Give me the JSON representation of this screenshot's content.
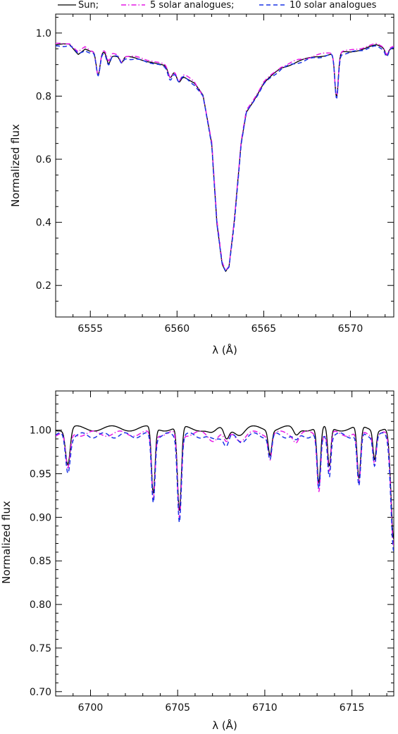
{
  "legend": {
    "items": [
      {
        "label": "Sun;",
        "color": "#000000",
        "dash": "solid"
      },
      {
        "label": "5 solar analogues;",
        "color": "#e619e6",
        "dash": "dashdot"
      },
      {
        "label": "10 solar analogues",
        "color": "#1a33e6",
        "dash": "dash"
      }
    ]
  },
  "chart_data": [
    {
      "type": "line",
      "xlabel": "λ (Å)",
      "ylabel": "Normalized flux",
      "xlim": [
        6553.0,
        6572.5
      ],
      "ylim": [
        0.1,
        1.06
      ],
      "xticks": [
        6555,
        6560,
        6565,
        6570
      ],
      "yticks": [
        0.2,
        0.4,
        0.6,
        0.8,
        1.0
      ],
      "ytick_labels": [
        "0.2",
        "0.4",
        "0.6",
        "0.8",
        "1.0"
      ],
      "continuum": [
        [
          6553.0,
          0.96
        ],
        [
          6553.8,
          0.965
        ],
        [
          6554.3,
          0.935
        ],
        [
          6554.7,
          0.95
        ],
        [
          6555.0,
          0.94
        ],
        [
          6555.8,
          0.94
        ],
        [
          6556.3,
          0.93
        ],
        [
          6557.5,
          0.92
        ],
        [
          6558.5,
          0.91
        ],
        [
          6559.5,
          0.89
        ],
        [
          6560.5,
          0.86
        ],
        [
          6561.0,
          0.84
        ],
        [
          6561.5,
          0.8
        ],
        [
          6562.0,
          0.65
        ],
        [
          6562.3,
          0.4
        ],
        [
          6562.6,
          0.27
        ],
        [
          6562.8,
          0.245
        ],
        [
          6563.0,
          0.26
        ],
        [
          6563.3,
          0.4
        ],
        [
          6563.7,
          0.65
        ],
        [
          6564.0,
          0.75
        ],
        [
          6565.0,
          0.84
        ],
        [
          6566.0,
          0.89
        ],
        [
          6567.0,
          0.91
        ],
        [
          6568.0,
          0.925
        ],
        [
          6569.0,
          0.935
        ],
        [
          6570.0,
          0.94
        ],
        [
          6571.0,
          0.955
        ],
        [
          6571.5,
          0.96
        ],
        [
          6572.0,
          0.95
        ],
        [
          6572.5,
          0.955
        ]
      ],
      "lines": [
        {
          "center": 6555.45,
          "depth": 0.075,
          "width": 0.11
        },
        {
          "center": 6556.05,
          "depth": 0.03,
          "width": 0.1
        },
        {
          "center": 6556.8,
          "depth": 0.02,
          "width": 0.1
        },
        {
          "center": 6559.6,
          "depth": 0.03,
          "width": 0.12
        },
        {
          "center": 6560.1,
          "depth": 0.025,
          "width": 0.12
        },
        {
          "center": 6569.2,
          "depth": 0.14,
          "width": 0.1
        },
        {
          "center": 6572.1,
          "depth": 0.02,
          "width": 0.09
        }
      ],
      "series": [
        {
          "name": "Sun",
          "color": "#000000",
          "dash": "solid",
          "offset": 0.0
        },
        {
          "name": "5 solar analogues",
          "color": "#e619e6",
          "dash": "dashdot",
          "offset": 0.004
        },
        {
          "name": "10 solar analogues",
          "color": "#1a33e6",
          "dash": "dash",
          "offset": -0.003
        }
      ]
    },
    {
      "type": "line",
      "xlabel": "λ (Å)",
      "ylabel": "Normalized flux",
      "xlim": [
        6698.0,
        6717.4
      ],
      "ylim": [
        0.695,
        1.045
      ],
      "xticks": [
        6700,
        6705,
        6710,
        6715
      ],
      "yticks": [
        0.7,
        0.75,
        0.8,
        0.85,
        0.9,
        0.95,
        1.0
      ],
      "ytick_labels": [
        "0.70",
        "0.75",
        "0.80",
        "0.85",
        "0.90",
        "0.95",
        "1.00"
      ],
      "continuum": [
        [
          6698.0,
          1.0
        ],
        [
          6717.0,
          1.0
        ]
      ],
      "lines": [
        {
          "center": 6698.7,
          "depth": 0.042,
          "width": 0.13
        },
        {
          "center": 6703.6,
          "depth": 0.076,
          "width": 0.1
        },
        {
          "center": 6705.1,
          "depth": 0.097,
          "width": 0.11
        },
        {
          "center": 6707.0,
          "depth": 0.006,
          "width": 0.25
        },
        {
          "center": 6707.8,
          "depth": 0.012,
          "width": 0.14
        },
        {
          "center": 6708.6,
          "depth": 0.006,
          "width": 0.25
        },
        {
          "center": 6710.3,
          "depth": 0.028,
          "width": 0.1
        },
        {
          "center": 6711.8,
          "depth": 0.008,
          "width": 0.15
        },
        {
          "center": 6713.1,
          "depth": 0.064,
          "width": 0.1
        },
        {
          "center": 6713.7,
          "depth": 0.045,
          "width": 0.09
        },
        {
          "center": 6715.4,
          "depth": 0.06,
          "width": 0.1
        },
        {
          "center": 6716.3,
          "depth": 0.033,
          "width": 0.09
        },
        {
          "center": 6717.4,
          "depth": 0.13,
          "width": 0.16
        }
      ],
      "series": [
        {
          "name": "Sun",
          "color": "#000000",
          "dash": "solid",
          "offset": 0.002
        },
        {
          "name": "5 solar analogues",
          "color": "#e619e6",
          "dash": "dashdot",
          "offset": -0.004
        },
        {
          "name": "10 solar analogues",
          "color": "#1a33e6",
          "dash": "dash",
          "offset": -0.006
        }
      ]
    }
  ]
}
